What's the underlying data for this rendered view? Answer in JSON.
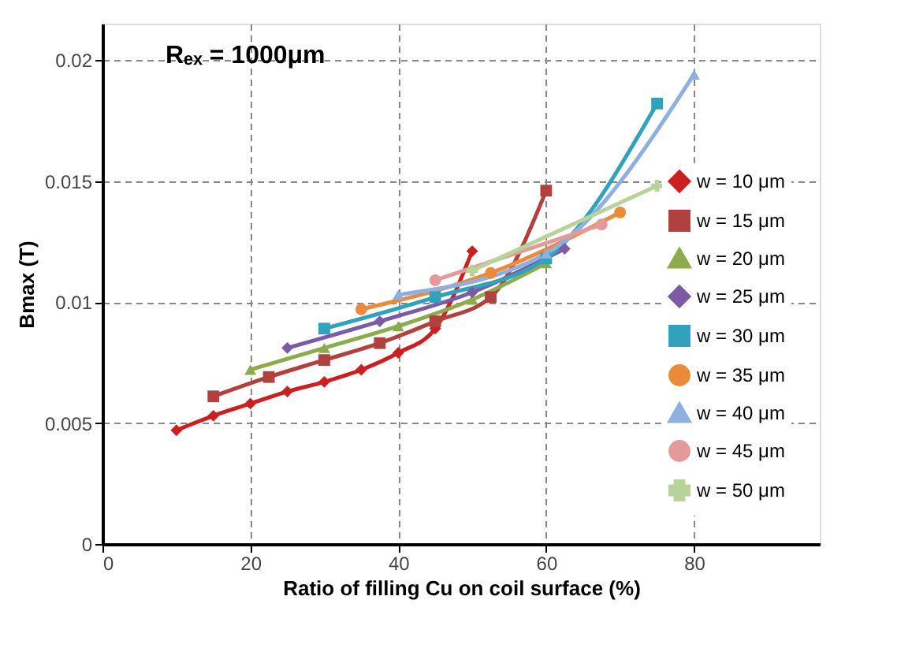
{
  "chart_data": {
    "type": "line",
    "xlabel": "Ratio of filling Cu on coil surface (%)",
    "ylabel": "Bmax (T)",
    "annotations": [
      "Rₑₓ = 1000μm"
    ],
    "xlim": [
      0,
      97
    ],
    "ylim": [
      0,
      0.0215
    ],
    "xticks": [
      0,
      20,
      40,
      60,
      80
    ],
    "yticks": [
      0,
      0.005,
      0.01,
      0.015,
      0.02
    ],
    "grid": true,
    "legend": "bottom right",
    "line_style": "solid",
    "series": [
      {
        "name": "w = 10 μm",
        "color": "#cc1f1f",
        "marker": "diamond",
        "x": [
          10,
          15,
          20,
          25,
          30,
          35,
          40,
          45,
          50
        ],
        "values": [
          0.0047,
          0.0053,
          0.0058,
          0.0063,
          0.0067,
          0.0072,
          0.0079,
          0.0089,
          0.0121
        ]
      },
      {
        "name": "w = 15 μm",
        "color": "#b0413e",
        "marker": "square",
        "x": [
          15,
          22.5,
          30,
          37.5,
          45,
          52.5,
          60
        ],
        "values": [
          0.0061,
          0.0069,
          0.0076,
          0.0083,
          0.0092,
          0.0102,
          0.0146
        ]
      },
      {
        "name": "w = 20 μm",
        "color": "#8cab4b",
        "marker": "triangle",
        "x": [
          20,
          30,
          40,
          50,
          60
        ],
        "values": [
          0.0072,
          0.0081,
          0.009,
          0.0101,
          0.0116
        ]
      },
      {
        "name": "w = 25 μm",
        "color": "#7b5aa6",
        "marker": "diamond",
        "x": [
          25,
          37.5,
          50,
          62.5
        ],
        "values": [
          0.0081,
          0.0092,
          0.0104,
          0.0122
        ]
      },
      {
        "name": "w = 30 μm",
        "color": "#31a2be",
        "marker": "square",
        "x": [
          30,
          45,
          60,
          75
        ],
        "values": [
          0.0089,
          0.0102,
          0.0118,
          0.0182
        ]
      },
      {
        "name": "w = 35 μm",
        "color": "#ec8a3c",
        "marker": "circle",
        "x": [
          35,
          52.5,
          70
        ],
        "values": [
          0.0097,
          0.0112,
          0.0137
        ]
      },
      {
        "name": "w = 40 μm",
        "color": "#8fb0de",
        "marker": "triangle",
        "x": [
          40,
          60,
          80
        ],
        "values": [
          0.0103,
          0.012,
          0.0194
        ]
      },
      {
        "name": "w = 45 μm",
        "color": "#e49a9a",
        "marker": "circle",
        "x": [
          45,
          67.5
        ],
        "values": [
          0.0109,
          0.0132
        ]
      },
      {
        "name": "w = 50 μm",
        "color": "#b7d39a",
        "marker": "cross",
        "x": [
          50,
          75
        ],
        "values": [
          0.0113,
          0.0148
        ]
      }
    ]
  }
}
